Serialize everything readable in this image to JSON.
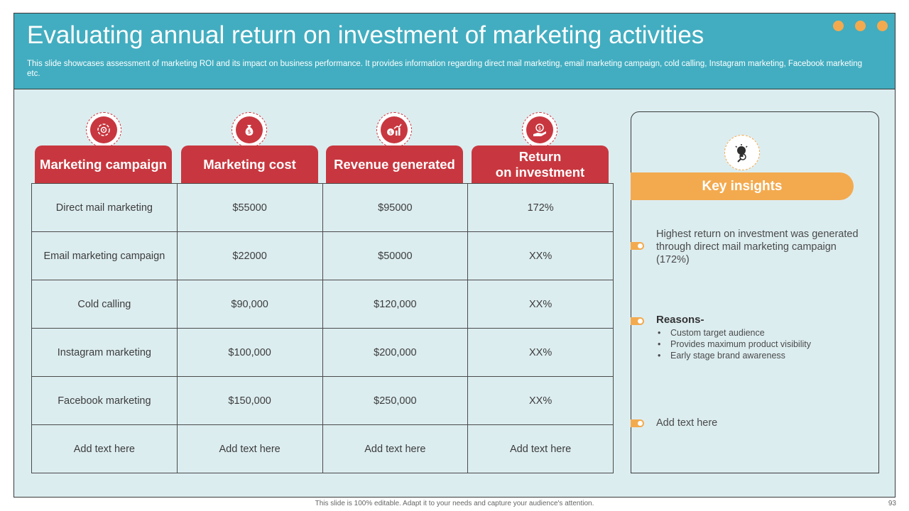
{
  "header": {
    "title": "Evaluating annual return on investment of marketing activities",
    "subtitle": "This slide showcases assessment of marketing ROI and its impact on business performance. It provides information regarding direct mail marketing, email marketing campaign, cold calling, Instagram marketing,  Facebook marketing etc."
  },
  "columns": [
    {
      "label": "Marketing campaign",
      "icon": "target-cycle-icon"
    },
    {
      "label": "Marketing cost",
      "icon": "money-bag-icon"
    },
    {
      "label": "Revenue generated",
      "icon": "revenue-chart-icon"
    },
    {
      "label_line1": "Return",
      "label_line2": "on investment",
      "icon": "roi-hand-icon"
    }
  ],
  "rows": [
    [
      "Direct mail marketing",
      "$55000",
      "$95000",
      "172%"
    ],
    [
      "Email marketing campaign",
      "$22000",
      "$50000",
      "XX%"
    ],
    [
      "Cold calling",
      "$90,000",
      "$120,000",
      "XX%"
    ],
    [
      "Instagram marketing",
      "$100,000",
      "$200,000",
      "XX%"
    ],
    [
      "Facebook marketing",
      "$150,000",
      "$250,000",
      "XX%"
    ],
    [
      "Add text here",
      "Add text here",
      "Add text here",
      "Add text here"
    ]
  ],
  "insights": {
    "title": "Key insights",
    "icon": "lightbulb-magnifier-icon",
    "item1": "Highest return on investment was generated through direct mail marketing campaign (172%)",
    "reasons_title": "Reasons-",
    "reasons": [
      "Custom target audience",
      "Provides maximum product visibility",
      "Early stage brand awareness"
    ],
    "item3": "Add text here"
  },
  "footer": {
    "note": "This slide is 100% editable. Adapt it to your needs and capture your audience's attention.",
    "page": "93"
  },
  "colors": {
    "header": "#42adc0",
    "background": "#dcedf0",
    "accent_red": "#c8373f",
    "accent_orange": "#f3aa4e"
  }
}
